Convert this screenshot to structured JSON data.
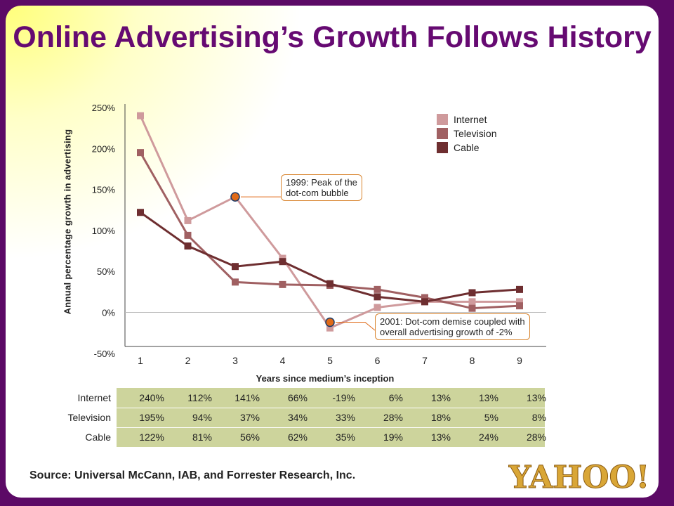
{
  "title": "Online Advertising’s Growth Follows History",
  "colors": {
    "internet": "#cf9a9c",
    "television": "#a06062",
    "cable": "#6e2e30",
    "marker": "#e06a18",
    "frame": "#5c0a66",
    "title": "#660a72",
    "table_bg": "#cdd49c",
    "logo": "#5c0a66",
    "logo_text": "#d9a636"
  },
  "chart_data": {
    "type": "line",
    "title": "Online Advertising’s Growth Follows History",
    "xlabel": "Years since medium’s inception",
    "ylabel": "Annual percentage growth in advertising",
    "x": [
      1,
      2,
      3,
      4,
      5,
      6,
      7,
      8,
      9
    ],
    "ylim": [
      -50,
      250
    ],
    "yticks": [
      "250%",
      "200%",
      "150%",
      "100%",
      "50%",
      "0%",
      "-50%"
    ],
    "ytick_values": [
      250,
      200,
      150,
      100,
      50,
      0,
      -50
    ],
    "legend_position": "top-right",
    "series": [
      {
        "name": "Internet",
        "values": [
          240,
          112,
          141,
          66,
          -19,
          6,
          13,
          13,
          13
        ]
      },
      {
        "name": "Television",
        "values": [
          195,
          94,
          37,
          34,
          33,
          28,
          18,
          5,
          8
        ]
      },
      {
        "name": "Cable",
        "values": [
          122,
          81,
          56,
          62,
          35,
          19,
          13,
          24,
          28
        ]
      }
    ],
    "annotations": [
      {
        "text_line1": "1999: Peak of the",
        "text_line2": "dot-com bubble",
        "x": 3,
        "y": 141
      },
      {
        "text_line1": "2001: Dot-com demise coupled with",
        "text_line2": "overall advertising growth of -2%",
        "x": 5,
        "y": -12
      }
    ]
  },
  "table": {
    "rows": [
      {
        "label": "Internet",
        "values": [
          "240%",
          "112%",
          "141%",
          "66%",
          "-19%",
          "6%",
          "13%",
          "13%",
          "13%"
        ]
      },
      {
        "label": "Television",
        "values": [
          "195%",
          "94%",
          "37%",
          "34%",
          "33%",
          "28%",
          "18%",
          "5%",
          "8%"
        ]
      },
      {
        "label": "Cable",
        "values": [
          "122%",
          "81%",
          "56%",
          "62%",
          "35%",
          "19%",
          "13%",
          "24%",
          "28%"
        ]
      }
    ]
  },
  "source": "Source: Universal McCann, IAB, and Forrester Research, Inc.",
  "logo": "YAHOO!"
}
